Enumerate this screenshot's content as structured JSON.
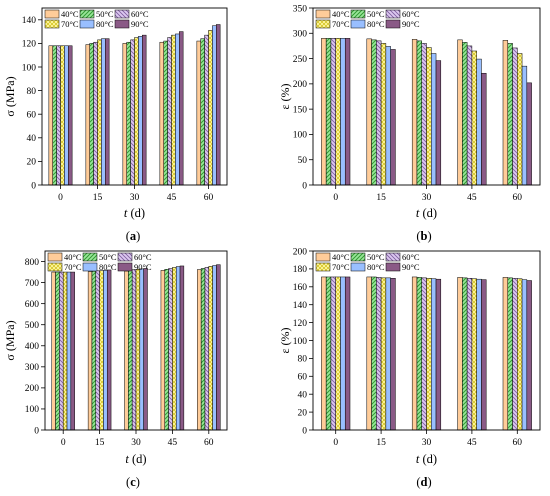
{
  "colors": {
    "40": "#ffcc99",
    "50": "#99e699",
    "60": "#dcc8f0",
    "70": "#fff7a0",
    "80": "#99bfff",
    "90": "#8a5a86",
    "hatch_50": "#339933",
    "hatch_60": "#8060a0",
    "hatch_70": "#c8b400"
  },
  "chart_data": [
    {
      "id": "a",
      "type": "bar",
      "panel_label": "a",
      "ylabel": "σ (MPa)",
      "xlabel": "t",
      "xlabel_unit": " (d)",
      "categories": [
        "0",
        "15",
        "30",
        "45",
        "60"
      ],
      "ylim": [
        0,
        150
      ],
      "yticks": [
        0,
        20,
        40,
        60,
        80,
        100,
        120,
        140
      ],
      "series": [
        {
          "name": "40°C",
          "key": "40",
          "values": [
            118,
            119,
            120,
            121,
            122
          ]
        },
        {
          "name": "50°C",
          "key": "50",
          "values": [
            118,
            120,
            121,
            122,
            124
          ]
        },
        {
          "name": "60°C",
          "key": "60",
          "values": [
            118,
            121,
            123,
            125,
            127
          ]
        },
        {
          "name": "70°C",
          "key": "70",
          "values": [
            118,
            123,
            125,
            127,
            131
          ]
        },
        {
          "name": "80°C",
          "key": "80",
          "values": [
            118,
            124,
            126,
            128,
            135
          ]
        },
        {
          "name": "90°C",
          "key": "90",
          "values": [
            118,
            124,
            127,
            130,
            136
          ]
        }
      ]
    },
    {
      "id": "b",
      "type": "bar",
      "panel_label": "b",
      "ylabel": "ε (%)",
      "xlabel": "t",
      "xlabel_unit": " (d)",
      "categories": [
        "0",
        "15",
        "30",
        "45",
        "60"
      ],
      "ylim": [
        0,
        350
      ],
      "yticks": [
        0,
        50,
        100,
        150,
        200,
        250,
        300,
        350
      ],
      "series": [
        {
          "name": "40°C",
          "key": "40",
          "values": [
            290,
            289,
            288,
            287,
            286
          ]
        },
        {
          "name": "50°C",
          "key": "50",
          "values": [
            290,
            287,
            285,
            282,
            280
          ]
        },
        {
          "name": "60°C",
          "key": "60",
          "values": [
            290,
            285,
            280,
            275,
            271
          ]
        },
        {
          "name": "70°C",
          "key": "70",
          "values": [
            290,
            280,
            272,
            265,
            260
          ]
        },
        {
          "name": "80°C",
          "key": "80",
          "values": [
            290,
            274,
            260,
            249,
            235
          ]
        },
        {
          "name": "90°C",
          "key": "90",
          "values": [
            290,
            268,
            246,
            221,
            202
          ]
        }
      ]
    },
    {
      "id": "c",
      "type": "bar",
      "panel_label": "c",
      "ylabel": "σ (MPa)",
      "xlabel": "t",
      "xlabel_unit": " (d)",
      "categories": [
        "0",
        "15",
        "30",
        "45",
        "60"
      ],
      "ylim": [
        0,
        850
      ],
      "yticks": [
        0,
        100,
        200,
        300,
        400,
        500,
        600,
        700,
        800
      ],
      "series": [
        {
          "name": "40°C",
          "key": "40",
          "values": [
            750,
            752,
            755,
            758,
            762
          ]
        },
        {
          "name": "50°C",
          "key": "50",
          "values": [
            750,
            754,
            758,
            763,
            767
          ]
        },
        {
          "name": "60°C",
          "key": "60",
          "values": [
            750,
            756,
            761,
            767,
            772
          ]
        },
        {
          "name": "70°C",
          "key": "70",
          "values": [
            750,
            757,
            763,
            772,
            777
          ]
        },
        {
          "name": "80°C",
          "key": "80",
          "values": [
            750,
            758,
            765,
            776,
            781
          ]
        },
        {
          "name": "90°C",
          "key": "90",
          "values": [
            750,
            760,
            767,
            779,
            785
          ]
        }
      ]
    },
    {
      "id": "d",
      "type": "bar",
      "panel_label": "d",
      "ylabel": "ε (%)",
      "xlabel": "t",
      "xlabel_unit": " (d)",
      "categories": [
        "0",
        "15",
        "30",
        "45",
        "60"
      ],
      "ylim": [
        0,
        200
      ],
      "yticks": [
        0,
        20,
        40,
        60,
        80,
        100,
        120,
        140,
        160,
        180,
        200
      ],
      "series": [
        {
          "name": "40°C",
          "key": "40",
          "values": [
            171,
            171,
            171,
            170.5,
            170.5
          ]
        },
        {
          "name": "50°C",
          "key": "50",
          "values": [
            171,
            171,
            170.5,
            170,
            170
          ]
        },
        {
          "name": "60°C",
          "key": "60",
          "values": [
            171,
            170.5,
            170,
            169.5,
            169.5
          ]
        },
        {
          "name": "70°C",
          "key": "70",
          "values": [
            171,
            170,
            169.5,
            169,
            169
          ]
        },
        {
          "name": "80°C",
          "key": "80",
          "values": [
            171,
            170,
            169,
            168.5,
            168
          ]
        },
        {
          "name": "90°C",
          "key": "90",
          "values": [
            171,
            169.5,
            168.5,
            168,
            167
          ]
        }
      ]
    }
  ]
}
